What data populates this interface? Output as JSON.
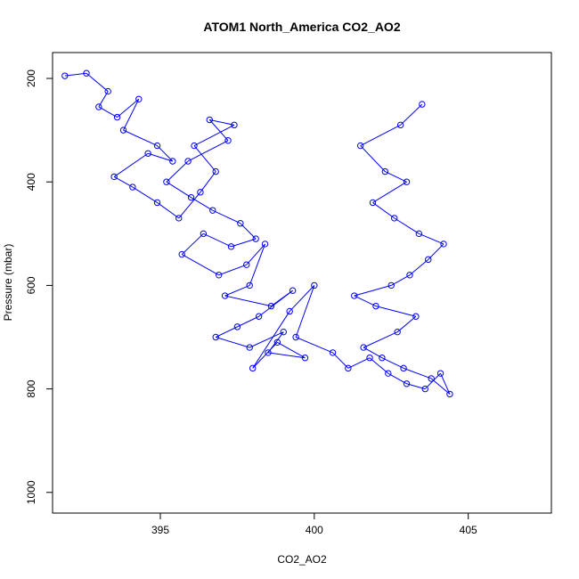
{
  "chart_data": {
    "type": "scatter",
    "title": "ATOM1 North_America CO2_AO2",
    "xlabel": "CO2_AO2",
    "ylabel": "Pressure (mbar)",
    "xlim": [
      391.5,
      407.7
    ],
    "ylim": [
      1040,
      150
    ],
    "y_reversed": true,
    "x_ticks": [
      395,
      400,
      405
    ],
    "y_ticks": [
      200,
      400,
      600,
      800,
      1000
    ],
    "x_tick_labels": [
      "395",
      "400",
      "405"
    ],
    "y_tick_labels": [
      "200",
      "400",
      "600",
      "800",
      "1000"
    ],
    "grid": false,
    "legend": "none",
    "marker": "open-circle",
    "connected": true,
    "color": "#0000ff",
    "series": [
      {
        "x": [
          391.9,
          392.6,
          393.3,
          393.0,
          393.6,
          394.3,
          393.8,
          394.9,
          395.4,
          394.6,
          393.5,
          394.1,
          394.9,
          395.6,
          396.3,
          396.8,
          396.1,
          397.4,
          396.6,
          397.2,
          395.9,
          395.2,
          396.0,
          396.7,
          397.6,
          398.1,
          397.3,
          396.4,
          395.7,
          396.9,
          397.8,
          398.4,
          397.9,
          397.1,
          398.6,
          399.3,
          398.2,
          397.5,
          396.8,
          397.9,
          399.0,
          398.5,
          399.7,
          398.8,
          398.0,
          399.2,
          400.0,
          399.4,
          400.6,
          401.1,
          401.8,
          402.4,
          403.0,
          403.6,
          404.1,
          404.4,
          403.8,
          402.9,
          402.2,
          401.6,
          402.7,
          403.3,
          402.0,
          401.3,
          402.5,
          403.1,
          403.7,
          404.2,
          403.4,
          402.6,
          401.9,
          403.0,
          402.3,
          401.5,
          402.8,
          403.5
        ],
        "y": [
          195,
          190,
          225,
          255,
          275,
          240,
          300,
          330,
          360,
          345,
          390,
          410,
          440,
          470,
          420,
          380,
          330,
          290,
          280,
          320,
          360,
          400,
          430,
          455,
          480,
          510,
          525,
          500,
          540,
          580,
          560,
          520,
          600,
          620,
          640,
          610,
          660,
          680,
          700,
          720,
          690,
          730,
          740,
          710,
          760,
          650,
          600,
          700,
          730,
          760,
          740,
          770,
          790,
          800,
          770,
          810,
          780,
          760,
          740,
          720,
          690,
          660,
          640,
          620,
          600,
          580,
          550,
          520,
          500,
          470,
          440,
          400,
          380,
          330,
          290,
          250
        ]
      }
    ]
  }
}
